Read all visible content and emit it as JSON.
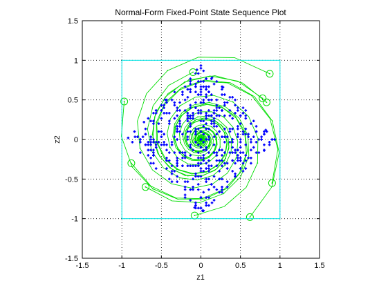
{
  "chart_data": {
    "type": "scatter",
    "title": "Normal-Form Fixed-Point State Sequence Plot",
    "xlabel": "z1",
    "ylabel": "z2",
    "xlim": [
      -1.5,
      1.5
    ],
    "ylim": [
      -1.5,
      1.5
    ],
    "xticks": [
      -1.5,
      -1,
      -0.5,
      0,
      0.5,
      1,
      1.5
    ],
    "yticks": [
      -1.5,
      -1,
      -0.5,
      0,
      0.5,
      1,
      1.5
    ],
    "xtick_labels": [
      "-1.5",
      "-1",
      "-0.5",
      "0",
      "0.5",
      "1",
      "1.5"
    ],
    "ytick_labels": [
      "-1.5",
      "-1",
      "-0.5",
      "0",
      "0.5",
      "1",
      "1.5"
    ],
    "grid": true,
    "grid_style": "dotted",
    "boundary_box": {
      "x": [
        -1,
        1
      ],
      "y": [
        -1,
        1
      ],
      "color": "#00e5e5"
    },
    "colors": {
      "points": "#0000ff",
      "trajectories": "#00dd00",
      "box": "#00e5e5"
    },
    "start_points": [
      [
        -0.1,
        0.85
      ],
      [
        0.87,
        0.83
      ],
      [
        0.78,
        0.52
      ],
      [
        0.83,
        0.47
      ],
      [
        -0.97,
        0.48
      ],
      [
        -0.88,
        -0.3
      ],
      [
        -0.7,
        -0.6
      ],
      [
        -0.08,
        -0.96
      ],
      [
        0.62,
        -0.98
      ],
      [
        0.9,
        -0.55
      ]
    ],
    "sample_points": [
      [
        0.02,
        0.93
      ],
      [
        0.06,
        0.9
      ],
      [
        -0.05,
        0.88
      ],
      [
        -0.2,
        0.76
      ],
      [
        -0.34,
        0.63
      ],
      [
        -0.45,
        0.5
      ],
      [
        -0.6,
        0.36
      ],
      [
        -0.72,
        0.22
      ],
      [
        -0.84,
        0.1
      ],
      [
        -0.92,
        0.02
      ],
      [
        -0.86,
        -0.1
      ],
      [
        -0.74,
        -0.22
      ],
      [
        -0.62,
        -0.36
      ],
      [
        -0.5,
        -0.5
      ],
      [
        -0.36,
        -0.62
      ],
      [
        -0.22,
        -0.74
      ],
      [
        -0.08,
        -0.86
      ],
      [
        0.02,
        -0.9
      ],
      [
        0.14,
        -0.8
      ],
      [
        0.28,
        -0.68
      ],
      [
        0.42,
        -0.54
      ],
      [
        0.56,
        -0.42
      ],
      [
        0.68,
        -0.28
      ],
      [
        0.8,
        -0.14
      ],
      [
        0.9,
        0.0
      ],
      [
        0.82,
        0.12
      ],
      [
        0.7,
        0.26
      ],
      [
        0.56,
        0.4
      ],
      [
        0.42,
        0.54
      ],
      [
        0.28,
        0.66
      ],
      [
        0.14,
        0.78
      ],
      [
        -0.3,
        0.3
      ],
      [
        0.3,
        0.3
      ],
      [
        0.3,
        -0.3
      ],
      [
        -0.3,
        -0.3
      ],
      [
        -0.5,
        0.1
      ],
      [
        0.5,
        -0.1
      ],
      [
        0.1,
        0.5
      ],
      [
        -0.1,
        -0.5
      ],
      [
        0.0,
        0.0
      ]
    ]
  }
}
